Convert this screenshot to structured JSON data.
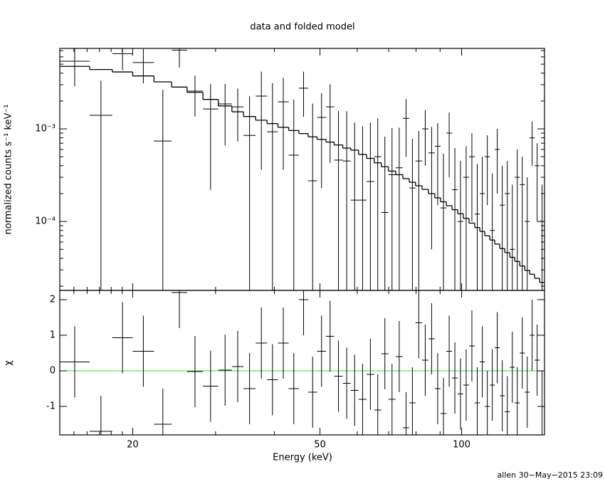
{
  "chart_data": [
    {
      "type": "spectrum",
      "title": "data and folded model",
      "ylabel": "normalized counts s⁻¹ keV⁻¹",
      "log_x": true,
      "log_y": true,
      "ylim": [
        1.8e-05,
        0.0074
      ],
      "yticks": [
        {
          "value": 0.001,
          "label": "10⁻³"
        },
        {
          "value": 0.0001,
          "label": "10⁻⁴"
        }
      ],
      "yminor_ticks": [
        2e-05,
        3e-05,
        4e-05,
        5e-05,
        6e-05,
        7e-05,
        8e-05,
        9e-05,
        0.0002,
        0.0003,
        0.0004,
        0.0005,
        0.0006,
        0.0007,
        0.0008,
        0.0009,
        0.002,
        0.003,
        0.004,
        0.005,
        0.006,
        0.007
      ],
      "bin_edges": [
        14.0,
        16.2,
        18.1,
        20.0,
        22.2,
        24.2,
        26.1,
        28.2,
        30.4,
        32.5,
        34.4,
        36.5,
        38.6,
        40.7,
        42.9,
        45.1,
        47.2,
        49.3,
        51.5,
        53.6,
        55.9,
        58.1,
        60.4,
        62.8,
        65.2,
        67.5,
        69.9,
        72.4,
        75.0,
        77.4,
        79.8,
        82.4,
        85.0,
        87.7,
        90.2,
        92.8,
        95.4,
        98.1,
        100.8,
        103.7,
        106.6,
        109.3,
        112.0,
        114.8,
        117.6,
        120.5,
        123.5,
        126.6,
        129.7,
        132.9,
        136.2,
        139.5,
        142.9,
        146.5,
        150
      ],
      "data": [
        0.00538,
        0.0014,
        0.0065,
        0.0052,
        0.00074,
        0.0071,
        0.00256,
        0.00164,
        0.00186,
        0.00173,
        0.00085,
        0.00226,
        0.00093,
        0.00196,
        0.00052,
        0.00275,
        0.000275,
        0.00133,
        0.00173,
        0.00046,
        0.00045,
        0.00017,
        0.00017,
        0.00027,
        0.0005,
        0.000125,
        0.00032,
        0.00038,
        0.0013,
        0.00023,
        0.00045,
        0.001,
        0.00055,
        0.00065,
        0.00014,
        0.0009,
        0.00022,
        0.0001,
        0.0003,
        0.0005,
        0.00012,
        0.0002,
        0.0005,
        8e-05,
        0.0006,
        0.00015,
        0.0002,
        5e-05,
        0.0003,
        0.00025,
        0.0001,
        0.0008,
        0.0004,
        0.0001
      ],
      "errors": [
        0.0025,
        0.0019,
        0.0022,
        0.0021,
        0.0019,
        0.0025,
        0.0012,
        0.00142,
        0.0012,
        0.001,
        0.0014,
        0.0019,
        0.0022,
        0.0016,
        0.00155,
        0.0014,
        0.0016,
        0.0011,
        0.0013,
        0.0011,
        0.0011,
        0.001,
        0.0009,
        0.0009,
        0.0008,
        0.0007,
        0.0007,
        0.00065,
        0.0008,
        0.00055,
        0.0005,
        0.0006,
        0.0005,
        0.0005,
        0.0004,
        0.0006,
        0.0004,
        0.00035,
        0.00035,
        0.0004,
        0.0003,
        0.0003,
        0.00035,
        0.00025,
        0.0004,
        0.00025,
        0.00025,
        0.0002,
        0.0003,
        0.00025,
        0.0002,
        0.0004,
        0.0003,
        0.00015
      ],
      "model": [
        0.00473,
        0.00438,
        0.00412,
        0.00373,
        0.00322,
        0.00283,
        0.00248,
        0.00208,
        0.00177,
        0.00153,
        0.00136,
        0.00124,
        0.00114,
        0.00104,
        0.00096,
        0.00089,
        0.00082,
        0.00077,
        0.00072,
        0.00067,
        0.00062,
        0.00059,
        0.00053,
        0.00048,
        0.00043,
        0.00039,
        0.00035,
        0.00032,
        0.00029,
        0.000265,
        0.000243,
        0.000222,
        0.0002,
        0.00018,
        0.000163,
        0.000148,
        0.000134,
        0.000121,
        0.000108,
        9.6e-05,
        8.6e-05,
        7.8e-05,
        7e-05,
        6.3e-05,
        5.7e-05,
        5.1e-05,
        4.6e-05,
        4.1e-05,
        3.7e-05,
        3.3e-05,
        2.96e-05,
        2.69e-05,
        2.43e-05,
        2.19e-05
      ],
      "color": "#000000"
    },
    {
      "type": "residual",
      "ylabel": "χ",
      "xlabel": "Energy (keV)",
      "xlim": [
        14,
        150
      ],
      "xticks": [
        20,
        50,
        100
      ],
      "xminor_ticks": [
        15,
        16,
        17,
        18,
        19,
        30,
        40,
        60,
        70,
        80,
        90
      ],
      "ylim": [
        -1.8,
        2.26
      ],
      "yticks": [
        -1,
        0,
        1,
        2
      ],
      "values": [
        0.25,
        -1.7,
        0.93,
        0.55,
        -1.5,
        2.2,
        -0.02,
        -0.43,
        0.02,
        0.12,
        -0.5,
        0.78,
        -0.25,
        0.78,
        -0.5,
        2.0,
        -0.6,
        0.55,
        0.97,
        -0.15,
        -0.35,
        -0.55,
        -0.8,
        -0.1,
        -1.1,
        0.48,
        -0.8,
        0.4,
        -1.6,
        -0.9,
        1.35,
        0.3,
        0.9,
        -0.5,
        -1.2,
        0.55,
        -0.2,
        -0.65,
        -0.4,
        0.7,
        -0.9,
        0.25,
        -1.0,
        -0.4,
        0.65,
        -0.7,
        -1.15,
        0.1,
        -0.9,
        0.5,
        -0.6,
        1.0,
        0.3,
        -1.0
      ],
      "errors": [
        1,
        1,
        1,
        1,
        1,
        1,
        1,
        1,
        1,
        1,
        1,
        1,
        1,
        1,
        1,
        1,
        1,
        1,
        1,
        1,
        1,
        1,
        1,
        1,
        1,
        1,
        1,
        1,
        1,
        1,
        1,
        1,
        1,
        1,
        1,
        1,
        1,
        1,
        1,
        1,
        1,
        1,
        1,
        1,
        1,
        1,
        1,
        1,
        1,
        1,
        1,
        1,
        1,
        1
      ],
      "reference_line": 0,
      "reference_color": "#33dd33",
      "color": "#000000"
    }
  ],
  "footer": "allen 30−May−2015 23:09"
}
